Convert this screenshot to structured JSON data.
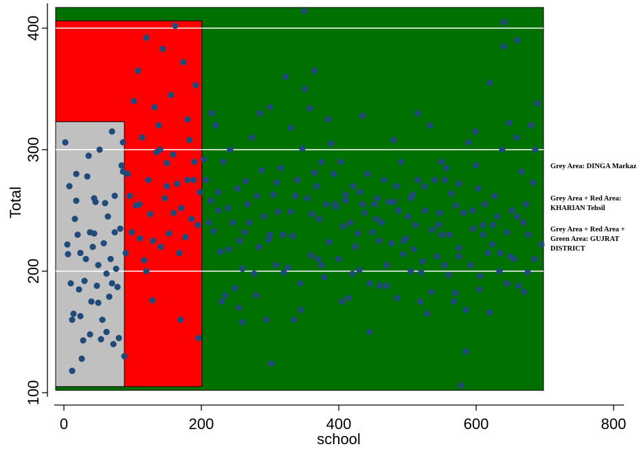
{
  "chart_data": {
    "type": "scatter",
    "xlabel": "school",
    "ylabel": "Total",
    "xlim": [
      -15,
      810
    ],
    "ylim": [
      98,
      418
    ],
    "xticks": [
      0,
      200,
      400,
      600,
      800
    ],
    "yticks": [
      100,
      200,
      300,
      400
    ],
    "grid": "horizontal white lines at 200, 300, 400",
    "colors": {
      "green_area": "#007000",
      "red_area": "#ff0000",
      "grey_area": "#c0c0c0",
      "points": "#1f4a7a",
      "gridline": "#ffffff"
    },
    "regions": [
      {
        "area": "green",
        "x": [
          -12,
          698
        ],
        "y": [
          102,
          417
        ]
      },
      {
        "area": "red",
        "x": [
          -12,
          201
        ],
        "y": [
          105,
          406
        ]
      },
      {
        "area": "grey",
        "x": [
          -12,
          88
        ],
        "y": [
          105,
          323
        ]
      }
    ],
    "points": [
      [
        2,
        306
      ],
      [
        5,
        222
      ],
      [
        6,
        214
      ],
      [
        8,
        270
      ],
      [
        10,
        190
      ],
      [
        12,
        118
      ],
      [
        14,
        165
      ],
      [
        16,
        243
      ],
      [
        18,
        258
      ],
      [
        20,
        230
      ],
      [
        22,
        185
      ],
      [
        24,
        163
      ],
      [
        26,
        128
      ],
      [
        28,
        143
      ],
      [
        30,
        192
      ],
      [
        32,
        210
      ],
      [
        34,
        278
      ],
      [
        36,
        295
      ],
      [
        38,
        148
      ],
      [
        40,
        175
      ],
      [
        42,
        220
      ],
      [
        44,
        231
      ],
      [
        46,
        257
      ],
      [
        48,
        188
      ],
      [
        50,
        174
      ],
      [
        52,
        300
      ],
      [
        54,
        144
      ],
      [
        56,
        160
      ],
      [
        58,
        223
      ],
      [
        60,
        256
      ],
      [
        62,
        198
      ],
      [
        64,
        245
      ],
      [
        66,
        179
      ],
      [
        68,
        210
      ],
      [
        70,
        315
      ],
      [
        72,
        140
      ],
      [
        74,
        262
      ],
      [
        76,
        202
      ],
      [
        78,
        187
      ],
      [
        80,
        145
      ],
      [
        82,
        235
      ],
      [
        84,
        287
      ],
      [
        86,
        306
      ],
      [
        88,
        130
      ],
      [
        90,
        215
      ],
      [
        93,
        280
      ],
      [
        96,
        262
      ],
      [
        99,
        232
      ],
      [
        102,
        340
      ],
      [
        105,
        254
      ],
      [
        108,
        365
      ],
      [
        111,
        227
      ],
      [
        114,
        310
      ],
      [
        117,
        209
      ],
      [
        120,
        392
      ],
      [
        123,
        275
      ],
      [
        126,
        247
      ],
      [
        129,
        176
      ],
      [
        132,
        335
      ],
      [
        135,
        298
      ],
      [
        138,
        320
      ],
      [
        141,
        220
      ],
      [
        144,
        383
      ],
      [
        147,
        260
      ],
      [
        150,
        289
      ],
      [
        153,
        231
      ],
      [
        156,
        345
      ],
      [
        159,
        296
      ],
      [
        162,
        402
      ],
      [
        165,
        272
      ],
      [
        168,
        215
      ],
      [
        171,
        252
      ],
      [
        174,
        372
      ],
      [
        177,
        228
      ],
      [
        180,
        325
      ],
      [
        183,
        308
      ],
      [
        186,
        243
      ],
      [
        189,
        275
      ],
      [
        192,
        353
      ],
      [
        195,
        238
      ],
      [
        198,
        265
      ],
      [
        204,
        292
      ],
      [
        207,
        275
      ],
      [
        211,
        240
      ],
      [
        214,
        258
      ],
      [
        218,
        233
      ],
      [
        221,
        320
      ],
      [
        225,
        265
      ],
      [
        228,
        216
      ],
      [
        232,
        290
      ],
      [
        235,
        180
      ],
      [
        239,
        252
      ],
      [
        242,
        300
      ],
      [
        246,
        240
      ],
      [
        249,
        186
      ],
      [
        253,
        268
      ],
      [
        256,
        225
      ],
      [
        260,
        202
      ],
      [
        263,
        232
      ],
      [
        267,
        255
      ],
      [
        270,
        240
      ],
      [
        274,
        310
      ],
      [
        277,
        198
      ],
      [
        281,
        262
      ],
      [
        284,
        220
      ],
      [
        288,
        283
      ],
      [
        291,
        245
      ],
      [
        295,
        160
      ],
      [
        298,
        226
      ],
      [
        302,
        124
      ],
      [
        305,
        263
      ],
      [
        309,
        205
      ],
      [
        312,
        249
      ],
      [
        316,
        285
      ],
      [
        319,
        230
      ],
      [
        323,
        360
      ],
      [
        326,
        203
      ],
      [
        330,
        249
      ],
      [
        333,
        229
      ],
      [
        337,
        262
      ],
      [
        340,
        275
      ],
      [
        344,
        190
      ],
      [
        347,
        301
      ],
      [
        351,
        350
      ],
      [
        354,
        260
      ],
      [
        358,
        334
      ],
      [
        361,
        247
      ],
      [
        365,
        281
      ],
      [
        368,
        270
      ],
      [
        372,
        243
      ],
      [
        375,
        290
      ],
      [
        379,
        195
      ],
      [
        382,
        255
      ],
      [
        386,
        224
      ],
      [
        389,
        305
      ],
      [
        393,
        280
      ],
      [
        396,
        253
      ],
      [
        400,
        210
      ],
      [
        403,
        290
      ],
      [
        407,
        237
      ],
      [
        410,
        263
      ],
      [
        414,
        178
      ],
      [
        417,
        240
      ],
      [
        421,
        270
      ],
      [
        424,
        220
      ],
      [
        428,
        231
      ],
      [
        431,
        265
      ],
      [
        435,
        255
      ],
      [
        438,
        248
      ],
      [
        442,
        280
      ],
      [
        445,
        190
      ],
      [
        449,
        232
      ],
      [
        452,
        255
      ],
      [
        456,
        260
      ],
      [
        459,
        225
      ],
      [
        463,
        240
      ],
      [
        466,
        275
      ],
      [
        470,
        205
      ],
      [
        473,
        257
      ],
      [
        477,
        223
      ],
      [
        480,
        308
      ],
      [
        484,
        270
      ],
      [
        487,
        250
      ],
      [
        491,
        290
      ],
      [
        494,
        214
      ],
      [
        498,
        227
      ],
      [
        501,
        245
      ],
      [
        505,
        200
      ],
      [
        508,
        263
      ],
      [
        512,
        238
      ],
      [
        515,
        275
      ],
      [
        519,
        175
      ],
      [
        522,
        208
      ],
      [
        526,
        250
      ],
      [
        529,
        165
      ],
      [
        533,
        320
      ],
      [
        536,
        234
      ],
      [
        540,
        275
      ],
      [
        543,
        212
      ],
      [
        547,
        248
      ],
      [
        550,
        290
      ],
      [
        554,
        205
      ],
      [
        557,
        285
      ],
      [
        561,
        230
      ],
      [
        564,
        264
      ],
      [
        568,
        175
      ],
      [
        571,
        254
      ],
      [
        575,
        212
      ],
      [
        578,
        106
      ],
      [
        582,
        248
      ],
      [
        585,
        134
      ],
      [
        589,
        306
      ],
      [
        592,
        205
      ],
      [
        596,
        235
      ],
      [
        599,
        315
      ],
      [
        603,
        268
      ],
      [
        606,
        196
      ],
      [
        610,
        230
      ],
      [
        613,
        255
      ],
      [
        617,
        215
      ],
      [
        620,
        355
      ],
      [
        624,
        222
      ],
      [
        627,
        262
      ],
      [
        631,
        245
      ],
      [
        634,
        200
      ],
      [
        638,
        300
      ],
      [
        641,
        405
      ],
      [
        645,
        232
      ],
      [
        648,
        322
      ],
      [
        652,
        250
      ],
      [
        655,
        210
      ],
      [
        659,
        310
      ],
      [
        662,
        188
      ],
      [
        666,
        282
      ],
      [
        669,
        240
      ],
      [
        673,
        255
      ],
      [
        676,
        230
      ],
      [
        680,
        320
      ],
      [
        683,
        273
      ],
      [
        686,
        300
      ],
      [
        689,
        338
      ],
      [
        12,
        160
      ],
      [
        24,
        215
      ],
      [
        38,
        232
      ],
      [
        50,
        205
      ],
      [
        62,
        150
      ],
      [
        74,
        232
      ],
      [
        86,
        282
      ],
      [
        18,
        280
      ],
      [
        44,
        260
      ],
      [
        70,
        190
      ],
      [
        110,
        255
      ],
      [
        130,
        225
      ],
      [
        150,
        270
      ],
      [
        170,
        160
      ],
      [
        190,
        290
      ],
      [
        120,
        200
      ],
      [
        140,
        300
      ],
      [
        160,
        248
      ],
      [
        180,
        275
      ],
      [
        196,
        145
      ],
      [
        215,
        330
      ],
      [
        240,
        218
      ],
      [
        260,
        158
      ],
      [
        280,
        180
      ],
      [
        300,
        230
      ],
      [
        320,
        199
      ],
      [
        345,
        168
      ],
      [
        370,
        210
      ],
      [
        395,
        255
      ],
      [
        420,
        198
      ],
      [
        445,
        150
      ],
      [
        470,
        188
      ],
      [
        495,
        225
      ],
      [
        520,
        199
      ],
      [
        545,
        238
      ],
      [
        570,
        182
      ],
      [
        595,
        250
      ],
      [
        620,
        166
      ],
      [
        645,
        190
      ],
      [
        670,
        183
      ],
      [
        230,
        175
      ],
      [
        255,
        170
      ],
      [
        285,
        330
      ],
      [
        310,
        273
      ],
      [
        335,
        160
      ],
      [
        360,
        213
      ],
      [
        385,
        325
      ],
      [
        410,
        258
      ],
      [
        435,
        328
      ],
      [
        460,
        188
      ],
      [
        485,
        178
      ],
      [
        510,
        218
      ],
      [
        535,
        183
      ],
      [
        560,
        197
      ],
      [
        585,
        168
      ],
      [
        610,
        238
      ],
      [
        635,
        215
      ],
      [
        660,
        245
      ],
      [
        685,
        210
      ],
      [
        350,
        414
      ],
      [
        225,
        250
      ],
      [
        265,
        274
      ],
      [
        300,
        335
      ],
      [
        330,
        318
      ],
      [
        375,
        205
      ],
      [
        405,
        175
      ],
      [
        430,
        201
      ],
      [
        455,
        243
      ],
      [
        480,
        257
      ],
      [
        505,
        260
      ],
      [
        525,
        270
      ],
      [
        550,
        230
      ],
      [
        575,
        219
      ],
      [
        600,
        287
      ],
      [
        625,
        238
      ],
      [
        650,
        212
      ],
      [
        675,
        199
      ],
      [
        695,
        222
      ],
      [
        640,
        385
      ],
      [
        660,
        390
      ],
      [
        515,
        330
      ],
      [
        365,
        365
      ],
      [
        605,
        185
      ],
      [
        555,
        275
      ],
      [
        575,
        272
      ]
    ]
  },
  "notes": [
    "Grey Area: DINGA Markaz",
    "Grey Area + Red Area: KHARIAN Tehsil",
    "Grey Area + Red Area + Green Area: GUJRAT DISTRICT"
  ]
}
